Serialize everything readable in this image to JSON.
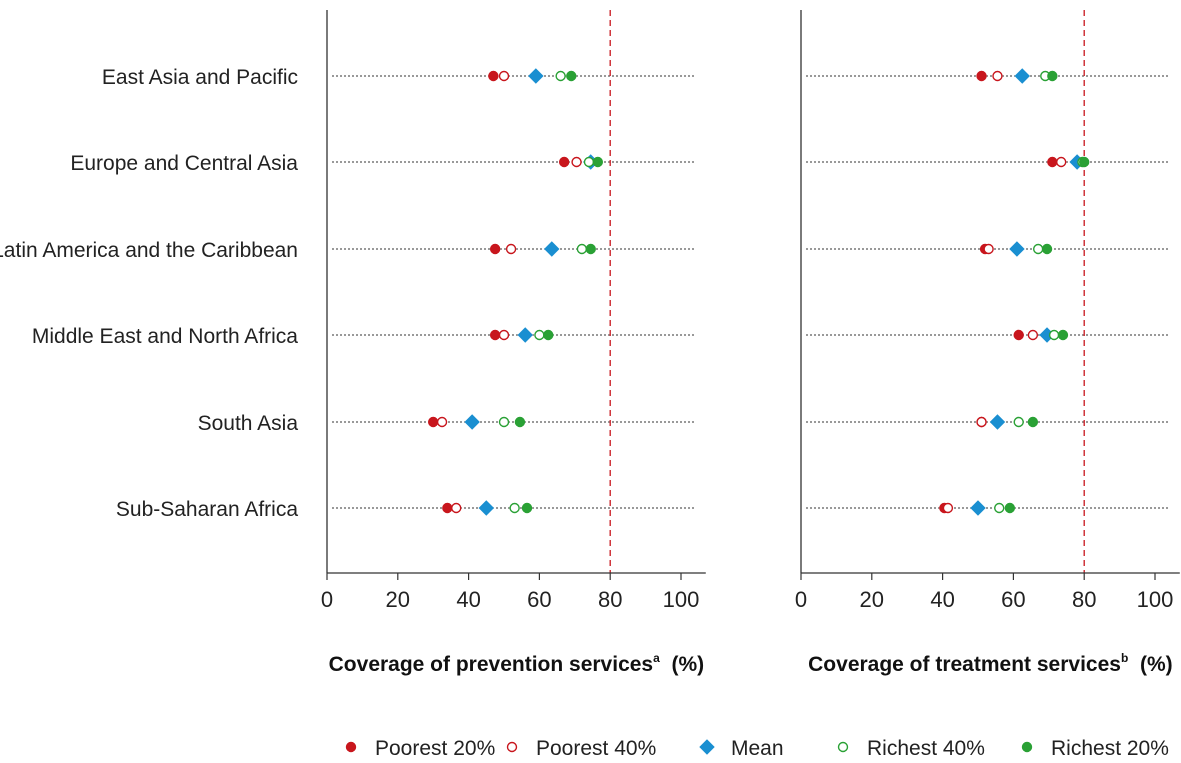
{
  "chart_data": [
    {
      "type": "scatter",
      "xlabel": "Coverage of prevention services",
      "xlabel_sup": "a",
      "xlabel_unit": "(%)",
      "xlim": [
        0,
        107
      ],
      "xticks": [
        0,
        20,
        40,
        60,
        80,
        100
      ],
      "reference_line": 80,
      "categories": [
        "East Asia and Pacific",
        "Europe and Central Asia",
        "Latin America and the Caribbean",
        "Middle East and North Africa",
        "South Asia",
        "Sub-Saharan Africa"
      ],
      "series": [
        {
          "name": "Poorest 20%",
          "values": [
            47,
            67,
            47.5,
            47.5,
            30,
            34
          ]
        },
        {
          "name": "Poorest 40%",
          "values": [
            50,
            70.5,
            52,
            50,
            32.5,
            36.5
          ]
        },
        {
          "name": "Mean",
          "values": [
            59,
            74.5,
            63.5,
            56,
            41,
            45
          ]
        },
        {
          "name": "Richest 40%",
          "values": [
            66,
            74,
            72,
            60,
            50,
            53
          ]
        },
        {
          "name": "Richest 20%",
          "values": [
            69,
            76.5,
            74.5,
            62.5,
            54.5,
            56.5
          ]
        }
      ]
    },
    {
      "type": "scatter",
      "xlabel": "Coverage of treatment services",
      "xlabel_sup": "b",
      "xlabel_unit": "(%)",
      "xlim": [
        0,
        107
      ],
      "xticks": [
        0,
        20,
        40,
        60,
        80,
        100
      ],
      "reference_line": 80,
      "categories": [
        "East Asia and Pacific",
        "Europe and Central Asia",
        "Latin America and the Caribbean",
        "Middle East and North Africa",
        "South Asia",
        "Sub-Saharan Africa"
      ],
      "series": [
        {
          "name": "Poorest 20%",
          "values": [
            51,
            71,
            52,
            61.5,
            51,
            40.5
          ]
        },
        {
          "name": "Poorest 40%",
          "values": [
            55.5,
            73.5,
            53,
            65.5,
            51,
            41.5
          ]
        },
        {
          "name": "Mean",
          "values": [
            62.5,
            78,
            61,
            69.5,
            55.5,
            50
          ]
        },
        {
          "name": "Richest 40%",
          "values": [
            69,
            79.5,
            67,
            71.5,
            61.5,
            56
          ]
        },
        {
          "name": "Richest 20%",
          "values": [
            71,
            80,
            69.5,
            74,
            65.5,
            59
          ]
        }
      ]
    }
  ],
  "legend": [
    {
      "name": "Poorest 20%",
      "marker": "filled-circle",
      "color": "#c8161d"
    },
    {
      "name": "Poorest 40%",
      "marker": "hollow-circle",
      "color": "#c8161d"
    },
    {
      "name": "Mean",
      "marker": "diamond",
      "color": "#1a8fd1"
    },
    {
      "name": "Richest 40%",
      "marker": "hollow-circle",
      "color": "#2aa135"
    },
    {
      "name": "Richest 20%",
      "marker": "filled-circle",
      "color": "#2aa135"
    }
  ],
  "colors": {
    "poorest": "#c8161d",
    "mean": "#1a8fd1",
    "richest": "#2aa135",
    "reference_line": "#c8161d",
    "axis": "#333333"
  }
}
